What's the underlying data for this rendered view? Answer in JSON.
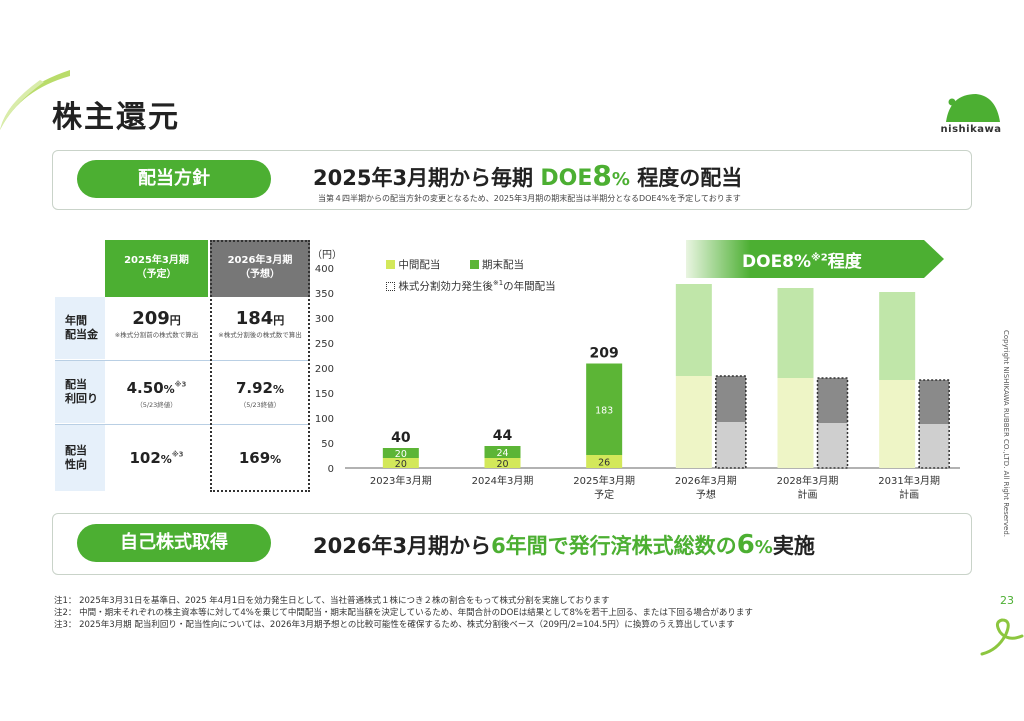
{
  "page": {
    "title": "株主還元",
    "logo_text": "nishikawa",
    "page_number": "23",
    "copyright": "Copyright NISHIKAWA RUBBER CO.,LTD. All Right Reserved."
  },
  "dividend_policy": {
    "pill": "配当方針",
    "headline_pre": "2025年3月期から毎期",
    "headline_doe": "DOE",
    "headline_num": "8",
    "headline_pct": "%",
    "headline_post": "程度の配当",
    "subnote": "当第４四半期からの配当方針の変更となるため、2025年3月期の期末配当は半期分となるDOE4%を予定しております"
  },
  "table": {
    "col1_header": "2025年3月期",
    "col1_sub": "（予定）",
    "col2_header": "2026年3月期",
    "col2_sub": "（予想）",
    "rows": [
      {
        "label1": "年間",
        "label2": "配当金",
        "v1": "209",
        "v1_unit": "円",
        "v1_note": "※株式分割前の株式数で算出",
        "v2": "184",
        "v2_unit": "円",
        "v2_note": "※株式分割後の株式数で算出"
      },
      {
        "label1": "配当",
        "label2": "利回り",
        "v1": "4.50",
        "v1_unit": "%",
        "v1_sup": "※3",
        "v1_note": "（5/23終値）",
        "v2": "7.92",
        "v2_unit": "%",
        "v2_note": "（5/23終値）"
      },
      {
        "label1": "配当",
        "label2": "性向",
        "v1": "102",
        "v1_unit": "%",
        "v1_sup": "※3",
        "v2": "169",
        "v2_unit": "%"
      }
    ]
  },
  "doe_banner": {
    "text": "DOE8%",
    "sup": "※2",
    "text2": "程度"
  },
  "legend": {
    "interim": "中間配当",
    "final": "期末配当",
    "split": "株式分割効力発生後",
    "split_sup": "※1",
    "split_post": "の年間配当"
  },
  "chart_data": {
    "type": "bar",
    "ylabel": "（円）",
    "ylim": [
      0,
      400
    ],
    "yticks": [
      0,
      50,
      100,
      150,
      200,
      250,
      300,
      350,
      400
    ],
    "categories": [
      {
        "l1": "2023年3月期",
        "l2": ""
      },
      {
        "l1": "2024年3月期",
        "l2": ""
      },
      {
        "l1": "2025年3月期",
        "l2": "予定"
      },
      {
        "l1": "2026年3月期",
        "l2": "予想"
      },
      {
        "l1": "2028年3月期",
        "l2": "計画"
      },
      {
        "l1": "2031年3月期",
        "l2": "計画"
      }
    ],
    "series": [
      {
        "name": "中間配当",
        "values": [
          20,
          20,
          26,
          184,
          180,
          176
        ],
        "color": "#d3e85a"
      },
      {
        "name": "期末配当",
        "values": [
          20,
          24,
          183,
          184,
          180,
          176
        ],
        "color": "#5cb536"
      }
    ],
    "split_series": {
      "name": "株式分割効力発生後※1の年間配当",
      "interim": [
        null,
        null,
        null,
        92,
        90,
        88
      ],
      "final": [
        null,
        null,
        null,
        92,
        90,
        88
      ]
    },
    "totals": [
      "40",
      "44",
      "209",
      "",
      "",
      ""
    ],
    "bar_labels": [
      [
        "20",
        "20"
      ],
      [
        "20",
        "24"
      ],
      [
        "26",
        "183"
      ],
      [
        "",
        ""
      ],
      [
        "",
        ""
      ],
      [
        "",
        ""
      ]
    ]
  },
  "buyback": {
    "pill": "自己株式取得",
    "headline_pre": "2026年3月期から",
    "headline_green": "6年間で発行済株式総数の",
    "headline_num": "6",
    "headline_pct": "%",
    "headline_post": "実施"
  },
  "notes": [
    "注1： 2025年3月31日を基準日、2025 年4月1日を効力発生日として、当社普通株式１株につき２株の割合をもって株式分割を実施しております",
    "注2： 中間・期末それぞれの株主資本等に対して4%を乗じて中間配当・期末配当額を決定しているため、年間合計のDOEは結果として8%を若干上回る、または下回る場合があります",
    "注3： 2025年3月期 配当利回り・配当性向については、2026年3月期予想との比較可能性を確保するため、株式分割後ベース（209円/2=104.5円）に換算のうえ算出しています"
  ]
}
